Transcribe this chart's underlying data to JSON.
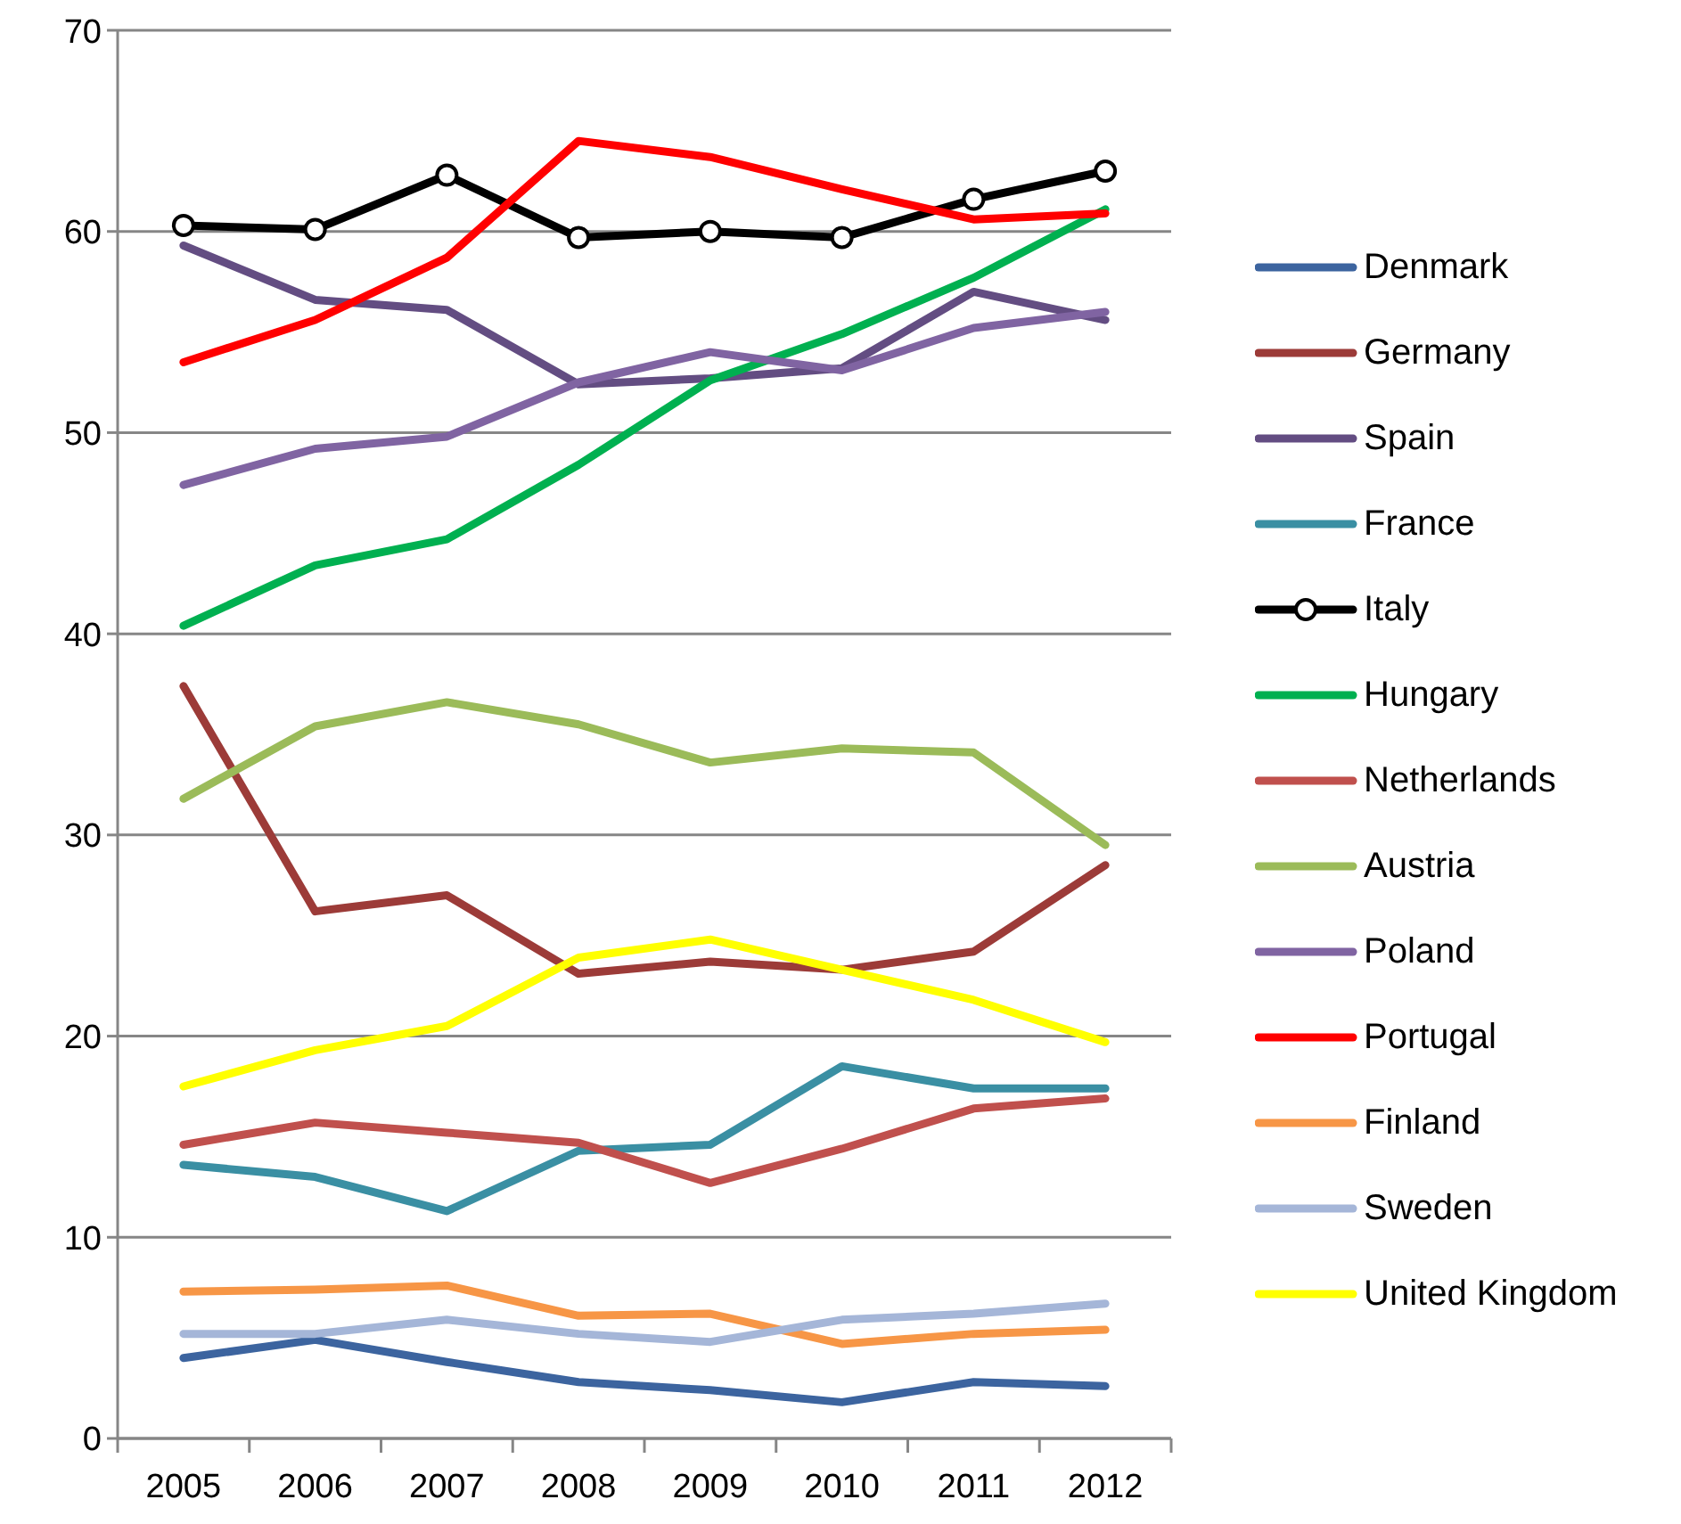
{
  "chart_data": {
    "type": "line",
    "categories": [
      "2005",
      "2006",
      "2007",
      "2008",
      "2009",
      "2010",
      "2011",
      "2012"
    ],
    "ylim": [
      0,
      70
    ],
    "yticks": [
      0,
      10,
      20,
      30,
      40,
      50,
      60,
      70
    ],
    "grid": "y",
    "legend": "right",
    "marker": "none",
    "line_style": "solid",
    "series": [
      {
        "name": "Denmark",
        "color": "#3c649f",
        "values": [
          4.0,
          4.9,
          3.8,
          2.8,
          2.4,
          1.8,
          2.8,
          2.6
        ]
      },
      {
        "name": "Germany",
        "color": "#9c3b38",
        "values": [
          37.4,
          26.2,
          27.0,
          23.1,
          23.7,
          23.3,
          24.2,
          28.5
        ]
      },
      {
        "name": "Spain",
        "color": "#634d82",
        "values": [
          59.3,
          56.6,
          56.1,
          52.4,
          52.7,
          53.2,
          57.0,
          55.6
        ]
      },
      {
        "name": "France",
        "color": "#3a8fa3",
        "values": [
          13.6,
          13.0,
          11.3,
          14.3,
          14.6,
          18.5,
          17.4,
          17.4
        ]
      },
      {
        "name": "Italy",
        "color": "#000000",
        "marker": "circle",
        "values": [
          60.3,
          60.1,
          62.8,
          59.7,
          60.0,
          59.7,
          61.6,
          63.0
        ]
      },
      {
        "name": "Hungary",
        "color": "#00b050",
        "values": [
          40.4,
          43.4,
          44.7,
          48.4,
          52.6,
          54.9,
          57.7,
          61.1
        ]
      },
      {
        "name": "Netherlands",
        "color": "#c0504d",
        "values": [
          14.6,
          15.7,
          15.2,
          14.7,
          12.7,
          14.4,
          16.4,
          16.9
        ]
      },
      {
        "name": "Austria",
        "color": "#9bbb59",
        "values": [
          31.8,
          35.4,
          36.6,
          35.5,
          33.6,
          34.3,
          34.1,
          29.5
        ]
      },
      {
        "name": "Poland",
        "color": "#8064a2",
        "values": [
          47.4,
          49.2,
          49.8,
          52.5,
          54.0,
          53.1,
          55.2,
          56.0
        ]
      },
      {
        "name": "Portugal",
        "color": "#ff0000",
        "values": [
          53.5,
          55.6,
          58.7,
          64.5,
          63.7,
          62.1,
          60.6,
          60.9
        ]
      },
      {
        "name": "Finland",
        "color": "#f79646",
        "values": [
          7.3,
          7.4,
          7.6,
          6.1,
          6.2,
          4.7,
          5.2,
          5.4
        ]
      },
      {
        "name": "Sweden",
        "color": "#a5b6d8",
        "values": [
          5.2,
          5.2,
          5.9,
          5.2,
          4.8,
          5.9,
          6.2,
          6.7
        ]
      },
      {
        "name": "United Kingdom",
        "color": "#ffff00",
        "values": [
          17.5,
          19.3,
          20.5,
          23.9,
          24.8,
          23.3,
          21.8,
          19.7
        ]
      }
    ]
  }
}
